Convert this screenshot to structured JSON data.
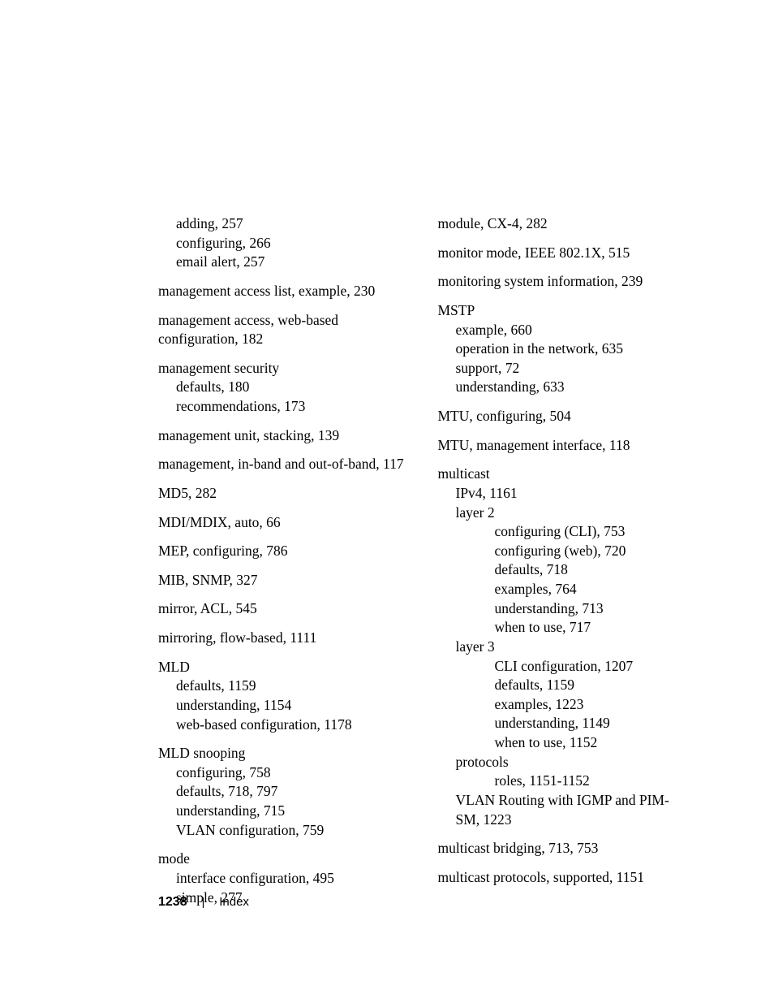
{
  "footer": {
    "page_number": "1238",
    "divider": "|",
    "label": "Index"
  },
  "left": {
    "e0_s0": "adding, 257",
    "e0_s1": "configuring, 266",
    "e0_s2": "email alert, 257",
    "e1_m": "management access list, example, 230",
    "e2_m": "management access, web-based configuration, 182",
    "e3_m": "management security",
    "e3_s0": "defaults, 180",
    "e3_s1": "recommendations, 173",
    "e4_m": "management unit, stacking, 139",
    "e5_m": "management, in-band and out-of-band, 117",
    "e6_m": "MD5, 282",
    "e7_m": "MDI/MDIX, auto, 66",
    "e8_m": "MEP, configuring, 786",
    "e9_m": "MIB, SNMP, 327",
    "e10_m": "mirror, ACL, 545",
    "e11_m": "mirroring, flow-based, 1111",
    "e12_m": "MLD",
    "e12_s0": "defaults, 1159",
    "e12_s1": "understanding, 1154",
    "e12_s2": "web-based configuration, 1178",
    "e13_m": "MLD snooping",
    "e13_s0": "configuring, 758",
    "e13_s1": "defaults, 718, 797",
    "e13_s2": "understanding, 715",
    "e13_s3": "VLAN configuration, 759",
    "e14_m": "mode",
    "e14_s0": "interface configuration, 495",
    "e14_s1": "simple, 277"
  },
  "right": {
    "e0_m": "module, CX-4, 282",
    "e1_m": "monitor mode, IEEE 802.1X, 515",
    "e2_m": "monitoring system information, 239",
    "e3_m": "MSTP",
    "e3_s0": "example, 660",
    "e3_s1": "operation in the network, 635",
    "e3_s2": "support, 72",
    "e3_s3": "understanding, 633",
    "e4_m": "MTU, configuring, 504",
    "e5_m": "MTU, management interface, 118",
    "e6_m": "multicast",
    "e6_s0": "IPv4, 1161",
    "e6_s1": "layer 2",
    "e6_ss10": "configuring (CLI), 753",
    "e6_ss11": "configuring (web), 720",
    "e6_ss12": "defaults, 718",
    "e6_ss13": "examples, 764",
    "e6_ss14": "understanding, 713",
    "e6_ss15": "when to use, 717",
    "e6_s2": "layer 3",
    "e6_ss20": "CLI configuration, 1207",
    "e6_ss21": "defaults, 1159",
    "e6_ss22": "examples, 1223",
    "e6_ss23": "understanding, 1149",
    "e6_ss24": "when to use, 1152",
    "e6_s3": "protocols",
    "e6_ss30": "roles, 1151-1152",
    "e6_s4": "VLAN Routing with IGMP and PIM-SM, 1223",
    "e7_m": "multicast bridging, 713, 753",
    "e8_m": "multicast protocols, supported, 1151"
  }
}
